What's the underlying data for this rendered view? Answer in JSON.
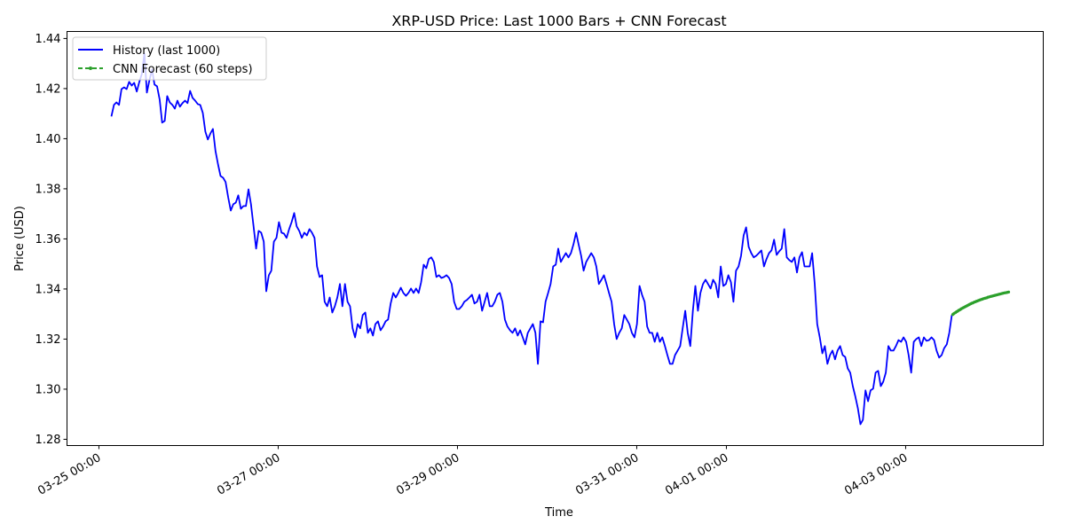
{
  "chart_data": {
    "type": "line",
    "title": "XRP-USD Price: Last 1000 Bars + CNN Forecast",
    "xlabel": "Time",
    "ylabel": "Price (USD)",
    "x_units": "days since 03-25 00:00",
    "xlim": [
      -0.356,
      10.535
    ],
    "ylim": [
      1.2775,
      1.4428
    ],
    "grid": false,
    "legend_position": "top-left",
    "x_ticks": [
      {
        "value": 0,
        "label": "03-25 00:00"
      },
      {
        "value": 2,
        "label": "03-27 00:00"
      },
      {
        "value": 4,
        "label": "03-29 00:00"
      },
      {
        "value": 6,
        "label": "03-31 00:00"
      },
      {
        "value": 7,
        "label": "04-01 00:00"
      },
      {
        "value": 9,
        "label": "04-03 00:00"
      }
    ],
    "y_ticks": [
      {
        "value": 1.28,
        "label": "1.28"
      },
      {
        "value": 1.3,
        "label": "1.30"
      },
      {
        "value": 1.32,
        "label": "1.32"
      },
      {
        "value": 1.34,
        "label": "1.34"
      },
      {
        "value": 1.36,
        "label": "1.36"
      },
      {
        "value": 1.38,
        "label": "1.38"
      },
      {
        "value": 1.4,
        "label": "1.40"
      },
      {
        "value": 1.42,
        "label": "1.42"
      },
      {
        "value": 1.44,
        "label": "1.44"
      }
    ],
    "series": [
      {
        "name": "History (last 1000)",
        "color": "#0000ff",
        "style": "solid",
        "x_start": 0.139,
        "x_end": 9.515,
        "values": [
          1.4089,
          1.4135,
          1.4145,
          1.4135,
          1.4198,
          1.4205,
          1.4198,
          1.4227,
          1.4212,
          1.4223,
          1.4188,
          1.4227,
          1.4258,
          1.434,
          1.4184,
          1.4234,
          1.4276,
          1.4216,
          1.4209,
          1.4156,
          1.4064,
          1.4071,
          1.417,
          1.4145,
          1.4135,
          1.412,
          1.4152,
          1.4128,
          1.4142,
          1.4152,
          1.4142,
          1.4191,
          1.4163,
          1.4152,
          1.4138,
          1.4135,
          1.4103,
          1.4028,
          1.3997,
          1.4021,
          1.4039,
          1.3951,
          1.3897,
          1.3851,
          1.3844,
          1.3827,
          1.3766,
          1.3713,
          1.3738,
          1.3745,
          1.3774,
          1.372,
          1.3731,
          1.3731,
          1.3798,
          1.3738,
          1.365,
          1.3561,
          1.3632,
          1.3625,
          1.3589,
          1.3391,
          1.3455,
          1.3473,
          1.3589,
          1.3604,
          1.3667,
          1.3625,
          1.3621,
          1.3604,
          1.3639,
          1.3667,
          1.3703,
          1.365,
          1.3632,
          1.3604,
          1.3625,
          1.3614,
          1.3639,
          1.3625,
          1.3604,
          1.349,
          1.3448,
          1.3455,
          1.3349,
          1.3331,
          1.3366,
          1.3306,
          1.3331,
          1.3366,
          1.342,
          1.3331,
          1.342,
          1.3349,
          1.3331,
          1.3243,
          1.3207,
          1.326,
          1.3243,
          1.3296,
          1.3306,
          1.3225,
          1.3243,
          1.3214,
          1.326,
          1.3271,
          1.3235,
          1.325,
          1.3271,
          1.3278,
          1.3342,
          1.3384,
          1.3366,
          1.3384,
          1.3405,
          1.3384,
          1.3373,
          1.3384,
          1.3402,
          1.3384,
          1.3402,
          1.3384,
          1.3427,
          1.3497,
          1.3483,
          1.3519,
          1.3526,
          1.3508,
          1.3448,
          1.3455,
          1.3444,
          1.3448,
          1.3455,
          1.3444,
          1.342,
          1.3349,
          1.332,
          1.332,
          1.3331,
          1.3349,
          1.3356,
          1.3366,
          1.3377,
          1.3342,
          1.3349,
          1.3377,
          1.3313,
          1.3349,
          1.3384,
          1.3331,
          1.3331,
          1.3349,
          1.3377,
          1.3384,
          1.3349,
          1.3278,
          1.325,
          1.3235,
          1.3225,
          1.3243,
          1.3214,
          1.3235,
          1.3207,
          1.3179,
          1.3225,
          1.3243,
          1.326,
          1.3225,
          1.3101,
          1.3271,
          1.3267,
          1.3349,
          1.3384,
          1.342,
          1.349,
          1.3497,
          1.3561,
          1.3508,
          1.3526,
          1.3543,
          1.3526,
          1.3543,
          1.3579,
          1.3625,
          1.3579,
          1.3533,
          1.3473,
          1.3508,
          1.3526,
          1.3543,
          1.3526,
          1.349,
          1.342,
          1.3437,
          1.3455,
          1.342,
          1.3384,
          1.3349,
          1.326,
          1.32,
          1.3225,
          1.3243,
          1.3296,
          1.3278,
          1.326,
          1.3225,
          1.3207,
          1.326,
          1.3412,
          1.3377,
          1.3349,
          1.325,
          1.3225,
          1.3225,
          1.3189,
          1.3225,
          1.3189,
          1.3207,
          1.3172,
          1.3136,
          1.3101,
          1.3101,
          1.3136,
          1.3154,
          1.3172,
          1.3243,
          1.3313,
          1.3225,
          1.3172,
          1.3313,
          1.3412,
          1.3313,
          1.3384,
          1.342,
          1.3437,
          1.342,
          1.3402,
          1.3437,
          1.342,
          1.3366,
          1.349,
          1.3412,
          1.342,
          1.3455,
          1.3427,
          1.3349,
          1.3473,
          1.349,
          1.3533,
          1.3614,
          1.3646,
          1.3568,
          1.3543,
          1.3526,
          1.3533,
          1.3543,
          1.3554,
          1.349,
          1.3519,
          1.3543,
          1.3554,
          1.3597,
          1.3536,
          1.355,
          1.3561,
          1.3639,
          1.3526,
          1.3515,
          1.3508,
          1.3526,
          1.3466,
          1.3526,
          1.3547,
          1.349,
          1.349,
          1.349,
          1.3543,
          1.342,
          1.326,
          1.3207,
          1.3143,
          1.3172,
          1.3101,
          1.3136,
          1.3154,
          1.3119,
          1.3154,
          1.3172,
          1.3136,
          1.3129,
          1.3083,
          1.3066,
          1.3012,
          1.297,
          1.2924,
          1.286,
          1.2878,
          1.2995,
          1.2952,
          1.2995,
          1.3002,
          1.3066,
          1.3073,
          1.3012,
          1.303,
          1.3066,
          1.3172,
          1.3154,
          1.3154,
          1.3172,
          1.3196,
          1.3189,
          1.3207,
          1.3189,
          1.3136,
          1.3066,
          1.3189,
          1.32,
          1.3207,
          1.3172,
          1.3207,
          1.3193,
          1.3196,
          1.3207,
          1.3196,
          1.3154,
          1.3126,
          1.3136,
          1.3164,
          1.3179,
          1.3225,
          1.3296
        ]
      },
      {
        "name": "CNN Forecast (60 steps)",
        "color": "#2ca02c",
        "style": "dashed-dot-marker",
        "x_start": 9.525,
        "x_end": 10.149,
        "values": [
          1.3298,
          1.3301,
          1.3304,
          1.3306,
          1.3309,
          1.3311,
          1.3314,
          1.3316,
          1.3318,
          1.3321,
          1.3323,
          1.3325,
          1.3327,
          1.3329,
          1.3331,
          1.3333,
          1.3335,
          1.3337,
          1.3339,
          1.3341,
          1.3343,
          1.3344,
          1.3346,
          1.3348,
          1.3349,
          1.3351,
          1.3352,
          1.3354,
          1.3355,
          1.3357,
          1.3358,
          1.3359,
          1.3361,
          1.3362,
          1.3363,
          1.3364,
          1.3365,
          1.3367,
          1.3368,
          1.3369,
          1.337,
          1.3371,
          1.3372,
          1.3373,
          1.3374,
          1.3375,
          1.3376,
          1.3377,
          1.3378,
          1.3379,
          1.338,
          1.3381,
          1.3382,
          1.3383,
          1.3384,
          1.3385,
          1.3385,
          1.3386,
          1.3387,
          1.3388
        ]
      }
    ]
  }
}
